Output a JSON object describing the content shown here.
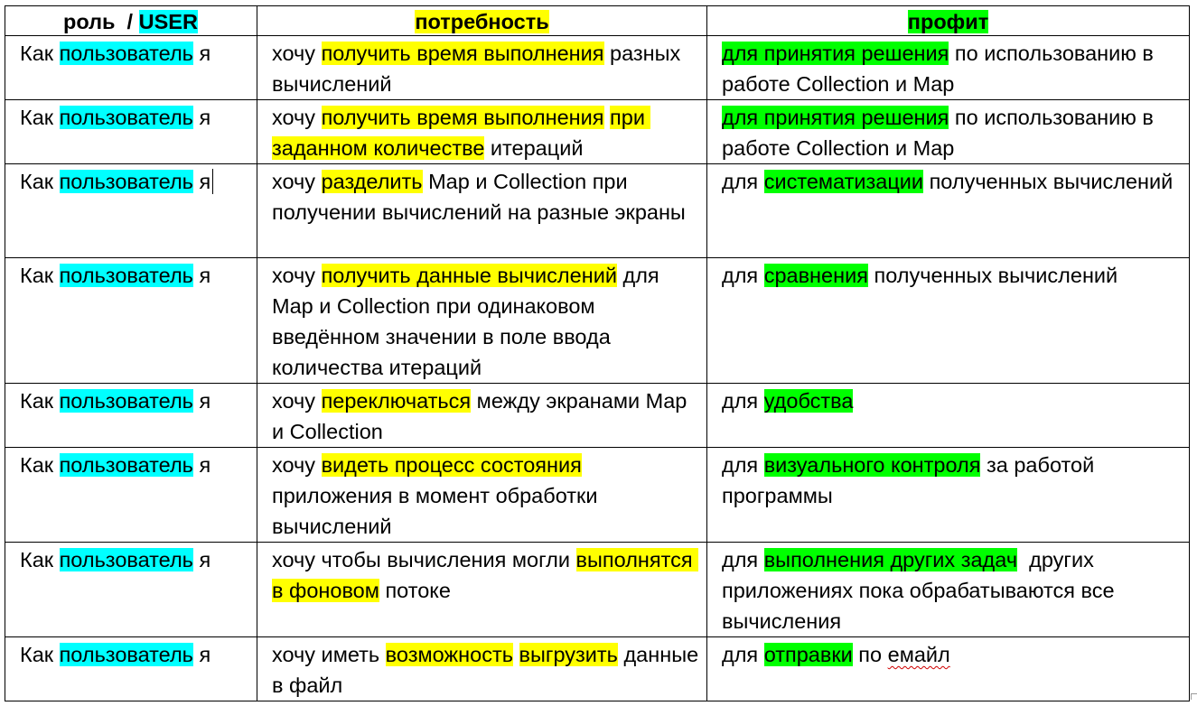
{
  "colors": {
    "cyan_highlight": "#00ffff",
    "yellow_highlight": "#ffff00",
    "green_highlight": "#00ff00"
  },
  "header": {
    "role_prefix": "роль  / ",
    "role_highlight": "USER",
    "need": "потребность",
    "profit": "профит"
  },
  "rows": [
    {
      "role": [
        {
          "t": "Как "
        },
        {
          "t": "пользователь",
          "hl": "cyan"
        },
        {
          "t": " я"
        }
      ],
      "need": [
        {
          "t": "хочу "
        },
        {
          "t": "получить время выполнения",
          "hl": "yellow"
        },
        {
          "t": " разных вычислений"
        }
      ],
      "profit": [
        {
          "t": "для принятия решения",
          "hl": "green"
        },
        {
          "t": " по использованию в работе Collection и Map"
        }
      ]
    },
    {
      "role": [
        {
          "t": "Как "
        },
        {
          "t": "пользователь",
          "hl": "cyan"
        },
        {
          "t": " я"
        }
      ],
      "need": [
        {
          "t": "хочу "
        },
        {
          "t": "получить время выполнения",
          "hl": "yellow"
        },
        {
          "t": " "
        },
        {
          "t": "при заданном количестве",
          "hl": "yellow"
        },
        {
          "t": " итераций"
        }
      ],
      "profit": [
        {
          "t": "для принятия решения",
          "hl": "green"
        },
        {
          "t": " по использованию в работе Collection и Map"
        }
      ]
    },
    {
      "role": [
        {
          "t": "Как "
        },
        {
          "t": "пользователь",
          "hl": "cyan"
        },
        {
          "t": " я"
        }
      ],
      "role_caret": true,
      "need": [
        {
          "t": "хочу "
        },
        {
          "t": "разделить",
          "hl": "yellow"
        },
        {
          "t": " Map и Collection при получении вычислений на разные экраны"
        }
      ],
      "profit": [
        {
          "t": "для "
        },
        {
          "t": "систематизации",
          "hl": "green"
        },
        {
          "t": " полученных вычислений"
        }
      ]
    },
    {
      "role": [
        {
          "t": "Как "
        },
        {
          "t": "пользователь",
          "hl": "cyan"
        },
        {
          "t": " я"
        }
      ],
      "need": [
        {
          "t": "хочу "
        },
        {
          "t": "получить данные вычислений",
          "hl": "yellow"
        },
        {
          "t": " для Map и Collection при одинаковом введённом значении в поле ввода количества итераций"
        }
      ],
      "profit": [
        {
          "t": "для "
        },
        {
          "t": "сравнения",
          "hl": "green"
        },
        {
          "t": " полученных вычислений"
        }
      ]
    },
    {
      "role": [
        {
          "t": "Как "
        },
        {
          "t": "пользователь",
          "hl": "cyan"
        },
        {
          "t": " я"
        }
      ],
      "need": [
        {
          "t": "хочу "
        },
        {
          "t": "переключаться",
          "hl": "yellow"
        },
        {
          "t": " между экранами Map  и Collection"
        }
      ],
      "profit": [
        {
          "t": "для "
        },
        {
          "t": "удобства",
          "hl": "green"
        }
      ]
    },
    {
      "role": [
        {
          "t": "Как "
        },
        {
          "t": "пользователь",
          "hl": "cyan"
        },
        {
          "t": " я"
        }
      ],
      "need": [
        {
          "t": "хочу "
        },
        {
          "t": "видеть процесс состояния",
          "hl": "yellow"
        },
        {
          "t": " приложения в момент обработки вычислений"
        }
      ],
      "profit": [
        {
          "t": "для "
        },
        {
          "t": "визуального контроля",
          "hl": "green"
        },
        {
          "t": " за работой программы"
        }
      ]
    },
    {
      "role": [
        {
          "t": "Как "
        },
        {
          "t": "пользователь",
          "hl": "cyan"
        },
        {
          "t": " я"
        }
      ],
      "need": [
        {
          "t": "хочу чтобы вычисления могли "
        },
        {
          "t": "выполнятся в фоновом",
          "hl": "yellow"
        },
        {
          "t": " потоке"
        }
      ],
      "profit": [
        {
          "t": "для "
        },
        {
          "t": "выполнения других задач",
          "hl": "green"
        },
        {
          "t": "  других приложениях пока обрабатываются все вычисления"
        }
      ]
    },
    {
      "role": [
        {
          "t": "Как "
        },
        {
          "t": "пользователь",
          "hl": "cyan"
        },
        {
          "t": " я"
        }
      ],
      "need": [
        {
          "t": "хочу иметь "
        },
        {
          "t": "возможность",
          "hl": "yellow"
        },
        {
          "t": " "
        },
        {
          "t": "выгрузить",
          "hl": "yellow"
        },
        {
          "t": " данные в файл"
        }
      ],
      "profit": [
        {
          "t": "для "
        },
        {
          "t": "отправки",
          "hl": "green"
        },
        {
          "t": " по "
        },
        {
          "t": "емайл",
          "squiggle": true
        }
      ]
    }
  ]
}
